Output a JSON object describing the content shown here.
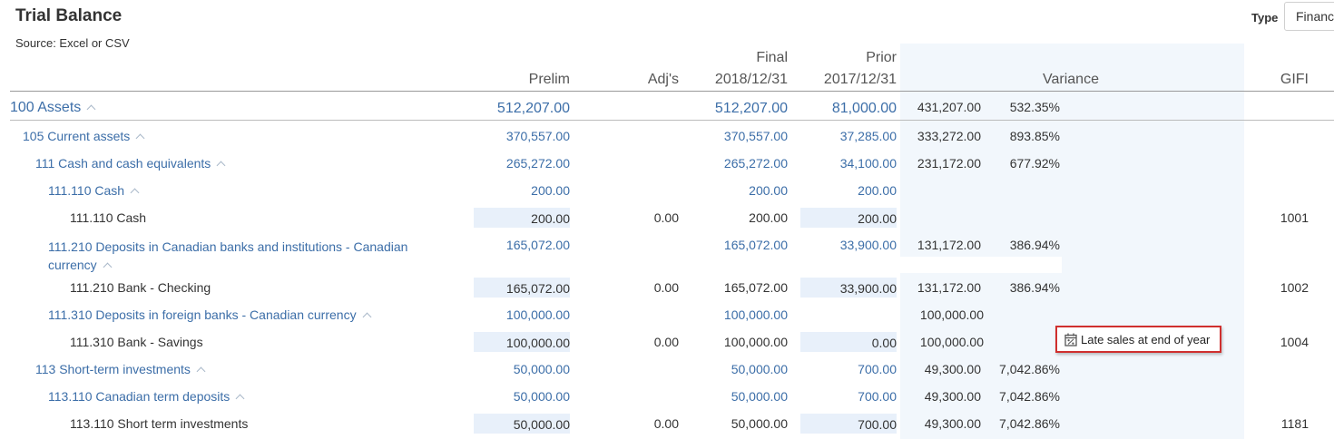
{
  "page": {
    "title": "Trial Balance",
    "source": "Source: Excel or CSV",
    "type_label": "Type",
    "type_value": "Financ"
  },
  "columns": {
    "prelim": "Prelim",
    "adj": "Adj's",
    "final_top": "Final",
    "final_bottom": "2018/12/31",
    "prior_top": "Prior",
    "prior_bottom": "2017/12/31",
    "variance": "Variance",
    "gifi": "GIFI"
  },
  "colors": {
    "link": "#3c6ea8",
    "text": "#333333",
    "input_bg": "#e8f0fa",
    "variance_band": "#f2f7fc",
    "note_border": "#d0302f"
  },
  "rows": [
    {
      "name": "100 Assets",
      "prelim": "512,207.00",
      "adj": "",
      "final": "512,207.00",
      "prior": "81,000.00",
      "var_amt": "431,207.00",
      "var_pct": "532.35%",
      "gifi": ""
    },
    {
      "name": "105 Current assets",
      "prelim": "370,557.00",
      "adj": "",
      "final": "370,557.00",
      "prior": "37,285.00",
      "var_amt": "333,272.00",
      "var_pct": "893.85%",
      "gifi": ""
    },
    {
      "name": "111 Cash and cash equivalents",
      "prelim": "265,272.00",
      "adj": "",
      "final": "265,272.00",
      "prior": "34,100.00",
      "var_amt": "231,172.00",
      "var_pct": "677.92%",
      "gifi": ""
    },
    {
      "name": "111.110 Cash",
      "prelim": "200.00",
      "adj": "",
      "final": "200.00",
      "prior": "200.00",
      "var_amt": "",
      "var_pct": "",
      "gifi": ""
    },
    {
      "name": "111.110 Cash",
      "prelim": "200.00",
      "adj": "0.00",
      "final": "200.00",
      "prior": "200.00",
      "var_amt": "",
      "var_pct": "",
      "gifi": "1001"
    },
    {
      "name_line1": "111.210 Deposits in Canadian banks and institutions - Canadian",
      "name_line2": "currency",
      "prelim": "165,072.00",
      "adj": "",
      "final": "165,072.00",
      "prior": "33,900.00",
      "var_amt": "131,172.00",
      "var_pct": "386.94%",
      "gifi": ""
    },
    {
      "name": "111.210 Bank - Checking",
      "prelim": "165,072.00",
      "adj": "0.00",
      "final": "165,072.00",
      "prior": "33,900.00",
      "var_amt": "131,172.00",
      "var_pct": "386.94%",
      "gifi": "1002"
    },
    {
      "name": "111.310 Deposits in foreign banks - Canadian currency",
      "prelim": "100,000.00",
      "adj": "",
      "final": "100,000.00",
      "prior": "",
      "var_amt": "100,000.00",
      "var_pct": "",
      "gifi": ""
    },
    {
      "name": "111.310 Bank - Savings",
      "prelim": "100,000.00",
      "adj": "0.00",
      "final": "100,000.00",
      "prior": "0.00",
      "var_amt": "100,000.00",
      "var_pct": "",
      "gifi": "1004"
    },
    {
      "name": "113 Short-term investments",
      "prelim": "50,000.00",
      "adj": "",
      "final": "50,000.00",
      "prior": "700.00",
      "var_amt": "49,300.00",
      "var_pct": "7,042.86%",
      "gifi": ""
    },
    {
      "name": "113.110 Canadian term deposits",
      "prelim": "50,000.00",
      "adj": "",
      "final": "50,000.00",
      "prior": "700.00",
      "var_amt": "49,300.00",
      "var_pct": "7,042.86%",
      "gifi": ""
    },
    {
      "name": "113.110 Short term investments",
      "prelim": "50,000.00",
      "adj": "0.00",
      "final": "50,000.00",
      "prior": "700.00",
      "var_amt": "49,300.00",
      "var_pct": "7,042.86%",
      "gifi": "1181"
    }
  ],
  "note": {
    "text": "Late sales at end of year",
    "icon": "calendar-percent-icon"
  }
}
